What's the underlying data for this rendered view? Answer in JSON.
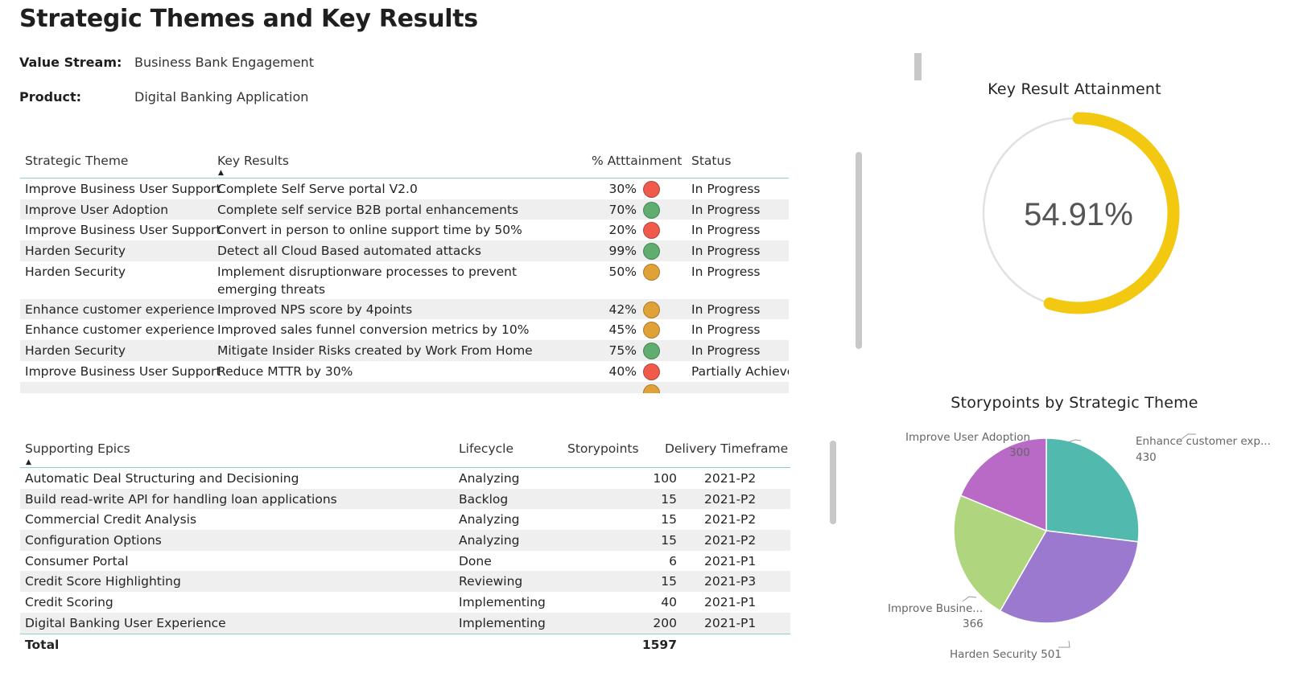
{
  "page": {
    "title": "Strategic Themes and Key Results",
    "value_stream_label": "Value Stream:",
    "value_stream": "Business Bank Engagement",
    "product_label": "Product:",
    "product": "Digital Banking Application"
  },
  "colors": {
    "red": "#ef5a4a",
    "green": "#5fae6f",
    "amber": "#e0a236",
    "gauge_fill": "#f2c811",
    "gauge_track": "#e1e1e1",
    "header_rule": "#8fcfc8"
  },
  "kr_table": {
    "headers": {
      "theme": "Strategic Theme",
      "key_results": "Key Results",
      "attainment": "% Atttainment",
      "status": "Status"
    },
    "rows": [
      {
        "theme": "Improve Business User Support",
        "key_result": "Complete Self Serve portal V2.0",
        "attainment": "30%",
        "indicator": "red",
        "status": "In Progress"
      },
      {
        "theme": "Improve User Adoption",
        "key_result": "Complete self service B2B portal enhancements",
        "attainment": "70%",
        "indicator": "green",
        "status": "In Progress"
      },
      {
        "theme": "Improve Business User Support",
        "key_result": "Convert in person to online support time by 50%",
        "attainment": "20%",
        "indicator": "red",
        "status": "In Progress"
      },
      {
        "theme": "Harden Security",
        "key_result": "Detect all Cloud Based automated attacks",
        "attainment": "99%",
        "indicator": "green",
        "status": "In Progress"
      },
      {
        "theme": "Harden Security",
        "key_result": "Implement disruptionware processes to prevent emerging threats",
        "attainment": "50%",
        "indicator": "amber",
        "status": "In Progress"
      },
      {
        "theme": "Enhance customer experience",
        "key_result": "Improved NPS score by 4points",
        "attainment": "42%",
        "indicator": "amber",
        "status": "In Progress"
      },
      {
        "theme": "Enhance customer experience",
        "key_result": "Improved sales funnel conversion metrics by 10%",
        "attainment": "45%",
        "indicator": "amber",
        "status": "In Progress"
      },
      {
        "theme": "Harden Security",
        "key_result": "Mitigate Insider Risks created by Work From Home",
        "attainment": "75%",
        "indicator": "green",
        "status": "In Progress"
      },
      {
        "theme": "Improve Business User Support",
        "key_result": "Reduce MTTR by 30%",
        "attainment": "40%",
        "indicator": "red",
        "status": "Partially Achieved"
      }
    ]
  },
  "epics_table": {
    "headers": {
      "epics": "Supporting Epics",
      "lifecycle": "Lifecycle",
      "storypoints": "Storypoints",
      "timeframe": "Delivery Timeframe"
    },
    "rows": [
      {
        "epic": "Automatic Deal Structuring and Decisioning",
        "lifecycle": "Analyzing",
        "storypoints": "100",
        "timeframe": "2021-P2"
      },
      {
        "epic": "Build read-write API for handling loan applications",
        "lifecycle": "Backlog",
        "storypoints": "15",
        "timeframe": "2021-P2"
      },
      {
        "epic": "Commercial Credit Analysis",
        "lifecycle": "Analyzing",
        "storypoints": "15",
        "timeframe": "2021-P2"
      },
      {
        "epic": "Configuration Options",
        "lifecycle": "Analyzing",
        "storypoints": "15",
        "timeframe": "2021-P2"
      },
      {
        "epic": "Consumer Portal",
        "lifecycle": "Done",
        "storypoints": "6",
        "timeframe": "2021-P1"
      },
      {
        "epic": "Credit Score Highlighting",
        "lifecycle": "Reviewing",
        "storypoints": "15",
        "timeframe": "2021-P3"
      },
      {
        "epic": "Credit Scoring",
        "lifecycle": "Implementing",
        "storypoints": "40",
        "timeframe": "2021-P1"
      },
      {
        "epic": "Digital Banking User Experience",
        "lifecycle": "Implementing",
        "storypoints": "200",
        "timeframe": "2021-P1"
      }
    ],
    "total_label": "Total",
    "total_value": "1597"
  },
  "gauge": {
    "title": "Key Result Attainment",
    "value_text": "54.91%",
    "value": 0.5491
  },
  "chart_data": {
    "type": "pie",
    "title": "Storypoints by Strategic Theme",
    "slices": [
      {
        "label": "Enhance customer exp...",
        "value": 430,
        "color": "#52b9ae"
      },
      {
        "label": "Harden Security",
        "value": 501,
        "color": "#9b79cf"
      },
      {
        "label": "Improve Busine...",
        "value": 366,
        "color": "#afd67e"
      },
      {
        "label": "Improve User Adoption",
        "value": 300,
        "color": "#b86ac6"
      }
    ]
  }
}
